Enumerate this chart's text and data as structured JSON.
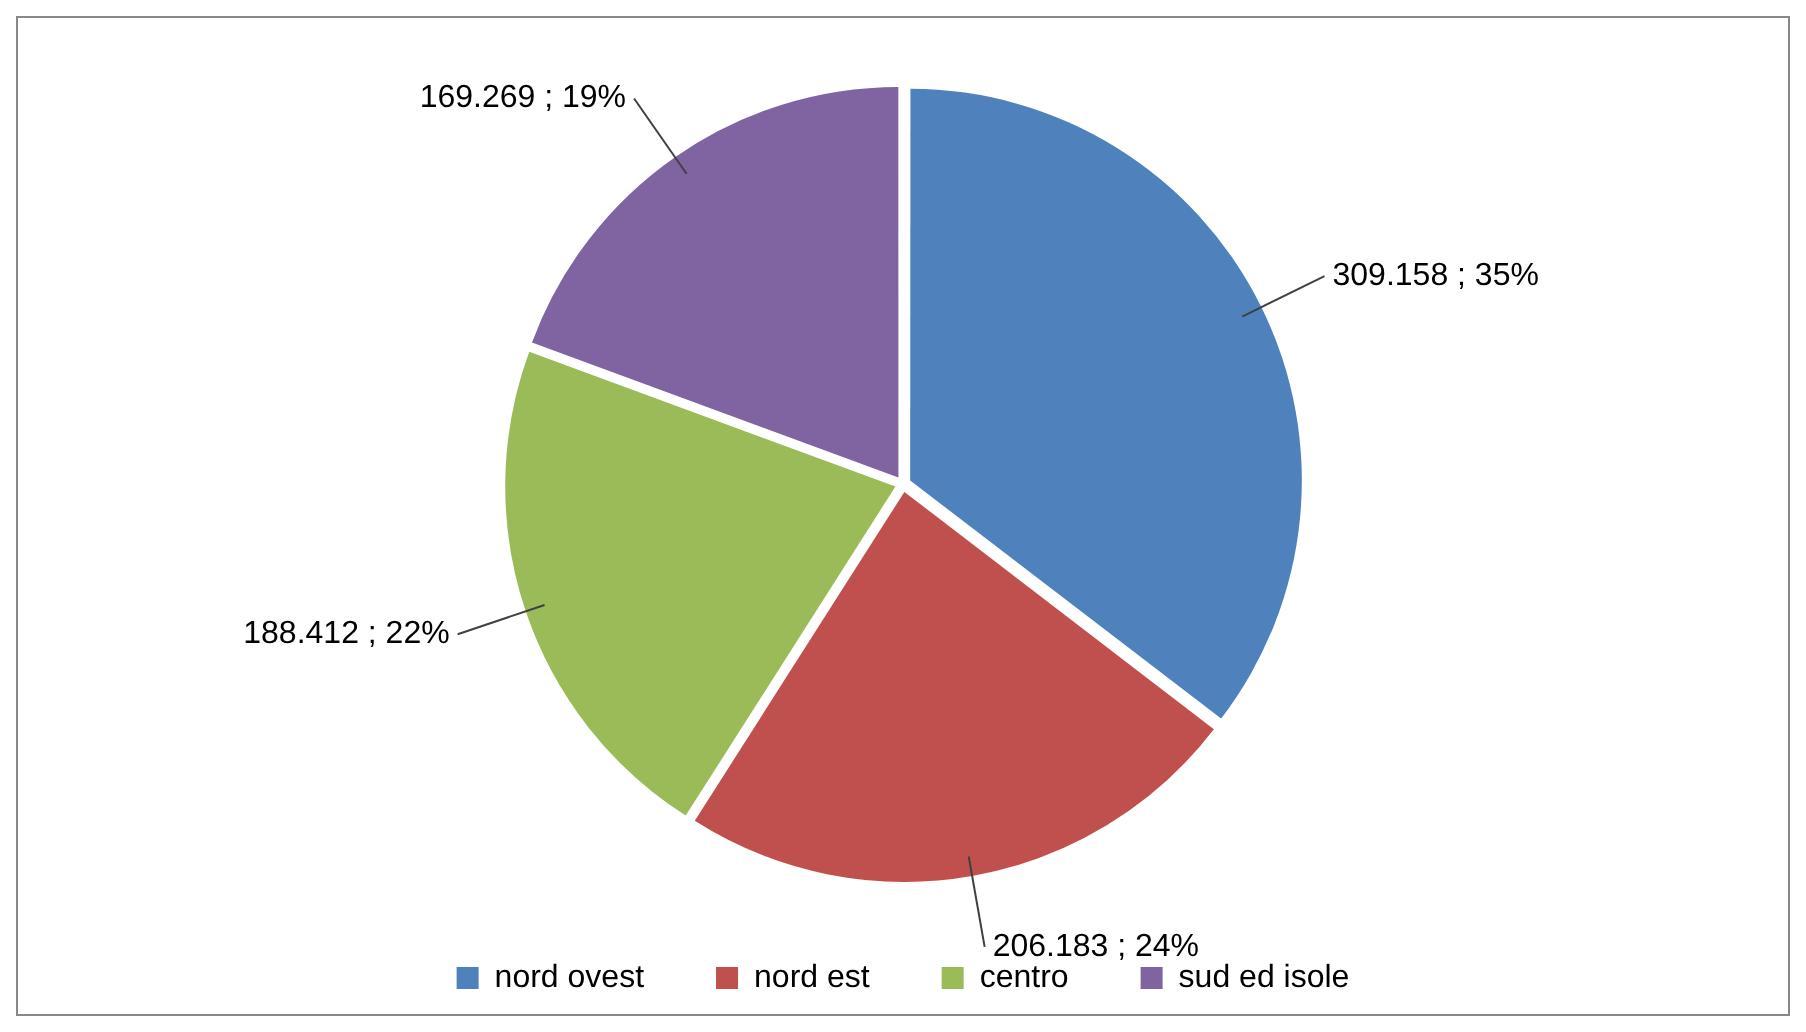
{
  "chart_data": {
    "type": "pie",
    "categories": [
      "nord ovest",
      "nord est",
      "centro",
      "sud ed isole"
    ],
    "values": [
      309158,
      206183,
      188412,
      169269
    ],
    "value_labels": [
      "309.158 ; 35%",
      "206.183 ; 24%",
      "188.412 ; 22%",
      "169.269 ; 19%"
    ],
    "colors": [
      "#4f81bd",
      "#c0504d",
      "#9bbb59",
      "#8064a2"
    ],
    "legend": "bottom"
  }
}
